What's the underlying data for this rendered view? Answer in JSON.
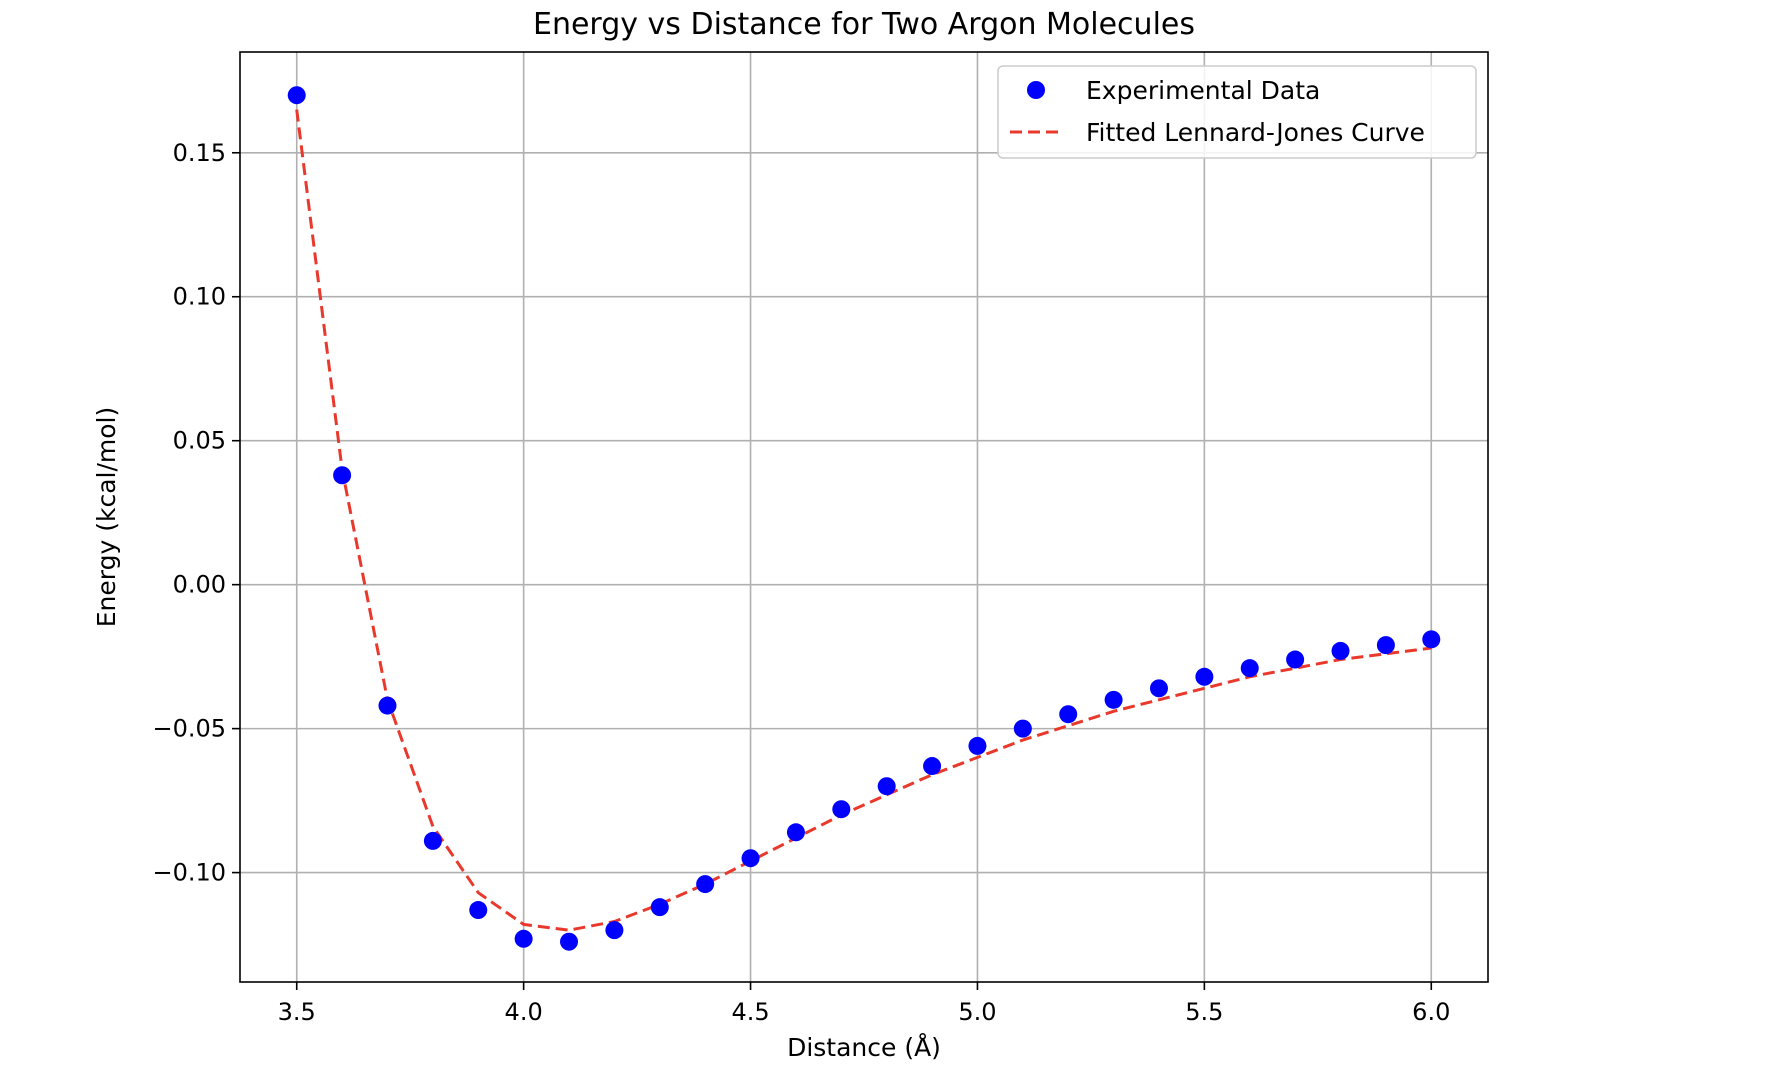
{
  "chart_data": {
    "type": "scatter",
    "title": "Energy vs Distance for Two Argon Molecules",
    "xlabel": "Distance (Å)",
    "ylabel": "Energy (kcal/mol)",
    "xlim": [
      3.375,
      6.125
    ],
    "ylim": [
      -0.138,
      0.185
    ],
    "xticks": [
      3.5,
      4.0,
      4.5,
      5.0,
      5.5,
      6.0
    ],
    "xtick_labels": [
      "3.5",
      "4.0",
      "4.5",
      "5.0",
      "5.5",
      "6.0"
    ],
    "yticks": [
      -0.1,
      -0.05,
      0.0,
      0.05,
      0.1,
      0.15
    ],
    "ytick_labels": [
      "−0.10",
      "−0.05",
      "0.00",
      "0.05",
      "0.10",
      "0.15"
    ],
    "grid": true,
    "legend_position": "upper right",
    "series": [
      {
        "name": "Experimental Data",
        "kind": "scatter",
        "color": "#0000ff",
        "x": [
          3.5,
          3.6,
          3.7,
          3.8,
          3.9,
          4.0,
          4.1,
          4.2,
          4.3,
          4.4,
          4.5,
          4.6,
          4.7,
          4.8,
          4.9,
          5.0,
          5.1,
          5.2,
          5.3,
          5.4,
          5.5,
          5.6,
          5.7,
          5.8,
          5.9,
          6.0
        ],
        "y": [
          0.17,
          0.038,
          -0.042,
          -0.089,
          -0.113,
          -0.123,
          -0.124,
          -0.12,
          -0.112,
          -0.104,
          -0.095,
          -0.086,
          -0.078,
          -0.07,
          -0.063,
          -0.056,
          -0.05,
          -0.045,
          -0.04,
          -0.036,
          -0.032,
          -0.029,
          -0.026,
          -0.023,
          -0.021,
          -0.019
        ]
      },
      {
        "name": "Fitted Lennard-Jones Curve",
        "kind": "line",
        "style": "dashed",
        "color": "#e8392c",
        "x": [
          3.5,
          3.6,
          3.7,
          3.8,
          3.9,
          4.0,
          4.1,
          4.2,
          4.3,
          4.4,
          4.5,
          4.6,
          4.7,
          4.8,
          4.9,
          5.0,
          5.1,
          5.2,
          5.3,
          5.4,
          5.5,
          5.6,
          5.7,
          5.8,
          5.9,
          6.0
        ],
        "y": [
          0.165,
          0.04,
          -0.04,
          -0.084,
          -0.107,
          -0.118,
          -0.12,
          -0.117,
          -0.111,
          -0.104,
          -0.096,
          -0.088,
          -0.08,
          -0.073,
          -0.066,
          -0.06,
          -0.054,
          -0.049,
          -0.044,
          -0.04,
          -0.036,
          -0.032,
          -0.029,
          -0.026,
          -0.024,
          -0.022
        ]
      }
    ]
  }
}
